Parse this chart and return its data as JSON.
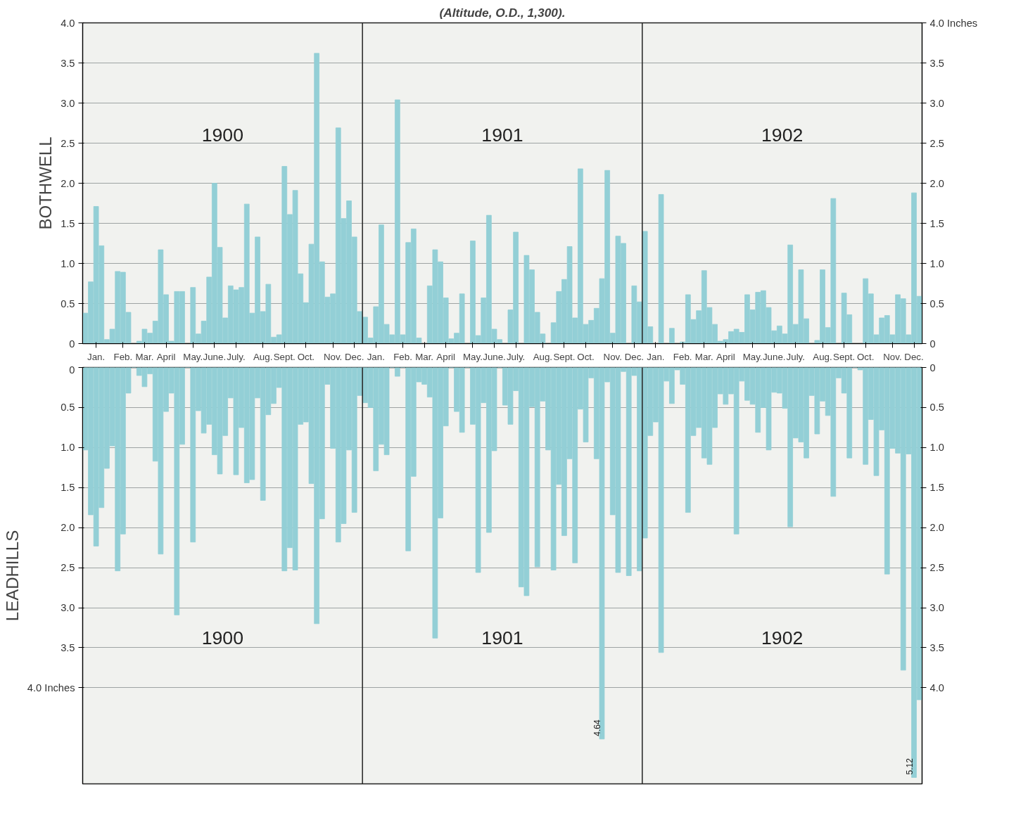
{
  "chart_data": [
    {
      "type": "bar",
      "subtitle": "(Altitude, O.D., 1,300).",
      "ylabel": "BOTHWELL",
      "grid": "y",
      "categories": [
        null,
        null,
        "Jan.",
        null,
        null,
        null,
        null,
        "Feb.",
        null,
        null,
        null,
        "Mar.",
        null,
        null,
        null,
        "April",
        null,
        null,
        null,
        null,
        "May.",
        null,
        null,
        null,
        "June.",
        null,
        null,
        null,
        "July.",
        null,
        null,
        null,
        null,
        "Aug.",
        null,
        null,
        null,
        "Sept.",
        null,
        null,
        null,
        "Oct.",
        null,
        null,
        null,
        null,
        "Nov.",
        null,
        null,
        null,
        "Dec.",
        null,
        null,
        null,
        "Jan.",
        null,
        null,
        null,
        null,
        "Feb.",
        null,
        null,
        null,
        "Mar.",
        null,
        null,
        null,
        "April",
        null,
        null,
        null,
        null,
        "May.",
        null,
        null,
        null,
        "June.",
        null,
        null,
        null,
        "July.",
        null,
        null,
        null,
        null,
        "Aug.",
        null,
        null,
        null,
        "Sept.",
        null,
        null,
        null,
        "Oct.",
        null,
        null,
        null,
        null,
        "Nov.",
        null,
        null,
        null,
        "Dec.",
        null,
        null,
        null,
        "Jan.",
        null,
        null,
        null,
        null,
        "Feb.",
        null,
        null,
        null,
        "Mar.",
        null,
        null,
        null,
        "April",
        null,
        null,
        null,
        null,
        "May.",
        null,
        null,
        null,
        "June.",
        null,
        null,
        null,
        "July.",
        null,
        null,
        null,
        null,
        "Aug.",
        null,
        null,
        null,
        "Sept.",
        null,
        null,
        null,
        "Oct.",
        null,
        null,
        null,
        null,
        "Nov.",
        null,
        null,
        null,
        "Dec.",
        null
      ],
      "series": [
        {
          "color": "#93cfd6",
          "values": [
            0.38,
            0.77,
            1.71,
            1.22,
            0.05,
            0.18,
            0.9,
            0.89,
            0.39,
            0,
            0.03,
            0.18,
            0.13,
            0.28,
            1.17,
            0.61,
            0.03,
            0.65,
            0.65,
            0,
            0.7,
            0.12,
            0.28,
            0.83,
            2.0,
            1.2,
            0.32,
            0.72,
            0.67,
            0.7,
            1.74,
            0.38,
            1.33,
            0.4,
            0.74,
            0.08,
            0.11,
            2.21,
            1.61,
            1.91,
            0.87,
            0.51,
            1.24,
            3.62,
            1.02,
            0.58,
            0.62,
            2.69,
            1.56,
            1.78,
            1.33,
            0.4,
            0.33,
            0.07,
            0.46,
            1.48,
            0.24,
            0.11,
            3.04,
            0.11,
            1.26,
            1.43,
            0.07,
            0,
            0.72,
            1.17,
            1.02,
            0.57,
            0.06,
            0.13,
            0.62,
            0,
            1.28,
            0.1,
            0.57,
            1.6,
            0.18,
            0.05,
            0,
            0.42,
            1.39,
            0,
            1.1,
            0.92,
            0.39,
            0.12,
            0,
            0.26,
            0.65,
            0.8,
            1.21,
            0.32,
            2.18,
            0.24,
            0.29,
            0.44,
            0.81,
            2.16,
            0.13,
            1.34,
            1.25,
            0,
            0.72,
            0.52,
            1.4,
            0.21,
            0,
            1.86,
            0,
            0.19,
            0,
            0.02,
            0.61,
            0.3,
            0.41,
            0.91,
            0.45,
            0.24,
            0.03,
            0.05,
            0.15,
            0.18,
            0.14,
            0.61,
            0.42,
            0.64,
            0.66,
            0.45,
            0.16,
            0.22,
            0.12,
            1.23,
            0.24,
            0.92,
            0.31,
            0,
            0.04,
            0.92,
            0.2,
            1.81,
            0,
            0.63,
            0.36,
            0,
            0,
            0.81,
            0.62,
            0.11,
            0.32,
            0.35,
            0.11,
            0.61,
            0.56,
            0.11,
            1.88,
            0.59
          ]
        }
      ],
      "ylim": [
        0,
        4.0
      ],
      "yticks": [
        0,
        {
          "value": 0.5,
          "label": "0.5"
        },
        {
          "value": 1.0,
          "label": "1.0"
        },
        {
          "value": 1.5,
          "label": "1.5"
        },
        {
          "value": 2.0,
          "label": "2.0"
        },
        {
          "value": 2.5,
          "label": "2.5"
        },
        {
          "value": 3.0,
          "label": "3.0"
        },
        {
          "value": 3.5,
          "label": "3.5"
        },
        {
          "value": 4.0,
          "label": "4.0"
        }
      ],
      "y2lim": [
        0,
        4.0
      ],
      "y2ticks": [
        0,
        {
          "value": 0.5,
          "label": "0.5"
        },
        {
          "value": 1.0,
          "label": "1.0"
        },
        {
          "value": 1.5,
          "label": "1.5"
        },
        {
          "value": 2.0,
          "label": "2.0"
        },
        {
          "value": 2.5,
          "label": "2.5"
        },
        {
          "value": 3.0,
          "label": "3.0"
        },
        {
          "value": 3.5,
          "label": "3.5"
        },
        {
          "value": 4.0,
          "label": "4.0 Inches"
        }
      ],
      "annotations": [
        "1900",
        "1901",
        "1902"
      ]
    },
    {
      "type": "bar",
      "ylabel": "LEADHILLS",
      "grid": "y",
      "tick_labels": "y",
      "categories": [
        null,
        null,
        null,
        null,
        null,
        null,
        null,
        null,
        null,
        null,
        null,
        null,
        null,
        null,
        null,
        null,
        null,
        null,
        null,
        null,
        null,
        null,
        null,
        null,
        null,
        null,
        null,
        null,
        null,
        null,
        null,
        null,
        null,
        null,
        null,
        null,
        null,
        null,
        null,
        null,
        null,
        null,
        null,
        null,
        null,
        null,
        null,
        null,
        null,
        null,
        null,
        null,
        null,
        null,
        null,
        null,
        null,
        null,
        null,
        null,
        null,
        null,
        null,
        null,
        null,
        null,
        null,
        null,
        null,
        null,
        null,
        null,
        null,
        null,
        null,
        null,
        null,
        null,
        null,
        null,
        null,
        null,
        null,
        null,
        null,
        null,
        null,
        null,
        null,
        null,
        null,
        null,
        null,
        null,
        null,
        null,
        null,
        null,
        null,
        null,
        null,
        null,
        null,
        null,
        null,
        null,
        null,
        null,
        null,
        null,
        null,
        null,
        null,
        null,
        null,
        null,
        null,
        null,
        null,
        null,
        null,
        null,
        null,
        null,
        null,
        null,
        null,
        null,
        null,
        null,
        null,
        null,
        null,
        null,
        null,
        null,
        null,
        null,
        null,
        null,
        null,
        null,
        null,
        null,
        null,
        null,
        null,
        null,
        null,
        null,
        null,
        null,
        null,
        null,
        null,
        null
      ],
      "series": [
        {
          "color": "#93cfd6",
          "values": [
            1.03,
            1.84,
            2.23,
            1.75,
            1.26,
            0.98,
            2.54,
            2.08,
            0.32,
            0,
            0.1,
            0.24,
            0.08,
            1.17,
            2.33,
            0.55,
            0.32,
            3.09,
            0.96,
            0,
            2.18,
            0.54,
            0.82,
            0.71,
            1.09,
            1.33,
            0.85,
            0.38,
            1.34,
            0.75,
            1.44,
            1.4,
            0.38,
            1.66,
            0.59,
            0.45,
            0.25,
            2.54,
            2.25,
            2.53,
            0.71,
            0.68,
            1.45,
            3.2,
            1.89,
            0.21,
            1.01,
            2.18,
            1.95,
            1.03,
            1.81,
            0.35,
            0.44,
            0.5,
            1.29,
            0.96,
            1.09,
            0,
            0.11,
            0,
            2.29,
            1.36,
            0.18,
            0.21,
            0.37,
            3.38,
            1.88,
            0.73,
            0,
            0.55,
            0.81,
            0,
            0.71,
            2.56,
            0.44,
            2.06,
            1.04,
            0,
            0.47,
            0.71,
            0.29,
            2.74,
            2.85,
            0.49,
            2.49,
            0.42,
            1.03,
            2.53,
            1.46,
            2.1,
            1.14,
            2.44,
            0.52,
            0.93,
            0.13,
            1.14,
            4.64,
            0.18,
            1.84,
            2.56,
            0.05,
            2.6,
            0.1,
            2.54,
            2.13,
            0.85,
            0.68,
            3.56,
            0.17,
            0.45,
            0.03,
            0.21,
            1.81,
            0.85,
            0.75,
            1.13,
            1.21,
            0.75,
            0.33,
            0.46,
            0.33,
            2.08,
            0.17,
            0.41,
            0.46,
            0.81,
            0.5,
            1.03,
            0.31,
            0.32,
            0.51,
            1.99,
            0.88,
            0.93,
            1.13,
            0.35,
            0.83,
            0.42,
            0.6,
            1.61,
            0.13,
            0.32,
            1.13,
            0,
            0.03,
            1.21,
            0.65,
            1.35,
            0.78,
            2.58,
            1.01,
            1.07,
            3.78,
            1.08,
            5.12,
            4.15
          ],
          "value_labels": [
            null,
            null,
            null,
            null,
            null,
            null,
            null,
            null,
            null,
            null,
            null,
            null,
            null,
            null,
            null,
            null,
            null,
            null,
            null,
            null,
            null,
            null,
            null,
            null,
            null,
            null,
            null,
            null,
            null,
            null,
            null,
            null,
            null,
            null,
            null,
            null,
            null,
            null,
            null,
            null,
            null,
            null,
            null,
            null,
            null,
            null,
            null,
            null,
            null,
            null,
            null,
            null,
            null,
            null,
            null,
            null,
            null,
            null,
            null,
            null,
            null,
            null,
            null,
            null,
            null,
            null,
            null,
            null,
            null,
            null,
            null,
            null,
            null,
            null,
            null,
            null,
            null,
            null,
            null,
            null,
            null,
            null,
            null,
            null,
            null,
            null,
            null,
            null,
            null,
            null,
            null,
            null,
            null,
            null,
            null,
            null,
            "4.64",
            null,
            null,
            null,
            null,
            null,
            null,
            null,
            null,
            null,
            null,
            null,
            null,
            null,
            null,
            null,
            null,
            null,
            null,
            null,
            null,
            null,
            null,
            null,
            null,
            null,
            null,
            null,
            null,
            null,
            null,
            null,
            null,
            null,
            null,
            null,
            null,
            null,
            null,
            null,
            null,
            null,
            null,
            null,
            null,
            null,
            null,
            null,
            null,
            null,
            null,
            null,
            null,
            null,
            null,
            null,
            null,
            null,
            "5.12",
            null
          ]
        }
      ],
      "ylim": [
        5.2,
        0
      ],
      "yticks": [
        0,
        {
          "value": 0.5,
          "label": "0.5"
        },
        {
          "value": 1.0,
          "label": "1.0"
        },
        {
          "value": 1.5,
          "label": "1.5"
        },
        {
          "value": 2.0,
          "label": "2.0"
        },
        {
          "value": 2.5,
          "label": "2.5"
        },
        {
          "value": 3.0,
          "label": "3.0"
        },
        {
          "value": 3.5,
          "label": "3.5"
        },
        {
          "value": 4.0,
          "label": "4.0 Inches"
        }
      ],
      "y2lim": [
        5.2,
        0
      ],
      "y2ticks": [
        0,
        {
          "value": 0.5,
          "label": "0.5"
        },
        {
          "value": 1.0,
          "label": "1.0"
        },
        {
          "value": 1.5,
          "label": "1.5"
        },
        {
          "value": 2.0,
          "label": "2.0"
        },
        {
          "value": 2.5,
          "label": "2.5"
        },
        {
          "value": 3.0,
          "label": "3.0"
        },
        {
          "value": 3.5,
          "label": "3.5"
        },
        {
          "value": 4.0,
          "label": "4.0"
        }
      ],
      "annotations": [
        "1900",
        "1901",
        "1902"
      ]
    }
  ]
}
